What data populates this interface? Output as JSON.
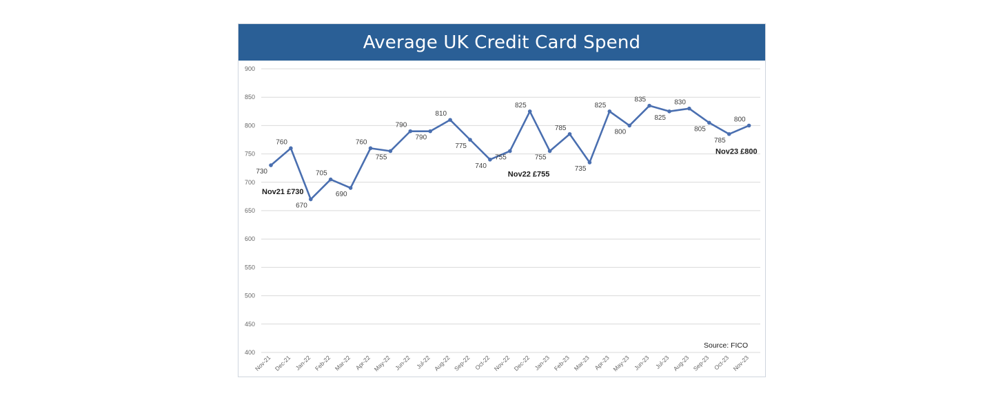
{
  "chart_data": {
    "type": "line",
    "title": "Average UK Credit Card Spend",
    "categories": [
      "Nov-21",
      "Dec-21",
      "Jan-22",
      "Feb-22",
      "Mar-22",
      "Apr-22",
      "May-22",
      "Jun-22",
      "Jul-22",
      "Aug-22",
      "Sep-22",
      "Oct-22",
      "Nov-22",
      "Dec-22",
      "Jan-23",
      "Feb-23",
      "Mar-23",
      "Apr-23",
      "May-23",
      "Jun-23",
      "Jul-23",
      "Aug-23",
      "Sep-23",
      "Oct-23",
      "Nov-23"
    ],
    "series": [
      {
        "values": [
          730,
          760,
          670,
          705,
          690,
          760,
          755,
          790,
          790,
          810,
          775,
          740,
          755,
          825,
          755,
          785,
          735,
          825,
          800,
          835,
          825,
          830,
          805,
          785,
          800
        ]
      }
    ],
    "ylim": [
      400,
      900
    ],
    "yticks": [
      400,
      450,
      500,
      550,
      600,
      650,
      700,
      750,
      800,
      850,
      900
    ],
    "grid": true,
    "annotations": [
      {
        "category": "Nov-21",
        "text": "Nov21 £730"
      },
      {
        "category": "Nov-22",
        "text": "Nov22 £755"
      },
      {
        "category": "Nov-23",
        "text": "Nov23 £800"
      }
    ],
    "source": "Source: FICO",
    "line_color": "#4a6fb0",
    "title_bar_color": "#2a5f96"
  }
}
